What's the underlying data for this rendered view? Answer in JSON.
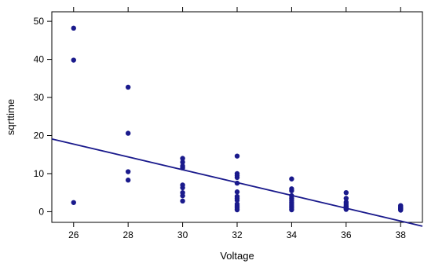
{
  "chart_data": {
    "type": "scatter",
    "title": "",
    "xlabel": "Voltage",
    "ylabel": "sqrttime",
    "xlim": [
      25.2,
      38.8
    ],
    "ylim": [
      -2.8,
      52.5
    ],
    "xticks": [
      26,
      28,
      30,
      32,
      34,
      36,
      38
    ],
    "yticks": [
      0,
      10,
      20,
      30,
      40,
      50
    ],
    "grid": false,
    "point_color": "#1a1a8c",
    "line_color": "#1a1a8c",
    "series": [
      {
        "points": [
          [
            26,
            48.2
          ],
          [
            26,
            39.8
          ],
          [
            26,
            2.4
          ],
          [
            28,
            32.7
          ],
          [
            28,
            20.6
          ],
          [
            28,
            10.5
          ],
          [
            28,
            8.3
          ],
          [
            30,
            14.0
          ],
          [
            30,
            13.0
          ],
          [
            30,
            12.0
          ],
          [
            30,
            11.5
          ],
          [
            30,
            7.0
          ],
          [
            30,
            6.3
          ],
          [
            30,
            5.0
          ],
          [
            30,
            4.2
          ],
          [
            30,
            2.8
          ],
          [
            32,
            14.6
          ],
          [
            32,
            10.0
          ],
          [
            32,
            9.5
          ],
          [
            32,
            9.0
          ],
          [
            32,
            7.5
          ],
          [
            32,
            5.2
          ],
          [
            32,
            4.0
          ],
          [
            32,
            3.5
          ],
          [
            32,
            3.0
          ],
          [
            32,
            2.0
          ],
          [
            32,
            1.5
          ],
          [
            32,
            1.0
          ],
          [
            32,
            0.5
          ],
          [
            34,
            8.6
          ],
          [
            34,
            6.0
          ],
          [
            34,
            5.5
          ],
          [
            34,
            4.2
          ],
          [
            34,
            3.5
          ],
          [
            34,
            3.0
          ],
          [
            34,
            2.5
          ],
          [
            34,
            2.0
          ],
          [
            34,
            1.5
          ],
          [
            34,
            1.0
          ],
          [
            34,
            0.5
          ],
          [
            36,
            5.0
          ],
          [
            36,
            3.5
          ],
          [
            36,
            2.5
          ],
          [
            36,
            2.0
          ],
          [
            36,
            1.5
          ],
          [
            36,
            1.2
          ],
          [
            36,
            0.9
          ],
          [
            36,
            0.6
          ],
          [
            38,
            1.6
          ],
          [
            38,
            1.3
          ],
          [
            38,
            1.0
          ],
          [
            38,
            0.8
          ],
          [
            38,
            0.6
          ],
          [
            38,
            0.4
          ]
        ]
      }
    ],
    "fit_line": {
      "x": [
        25.2,
        38.8
      ],
      "y": [
        19.1,
        -3.8
      ]
    }
  }
}
